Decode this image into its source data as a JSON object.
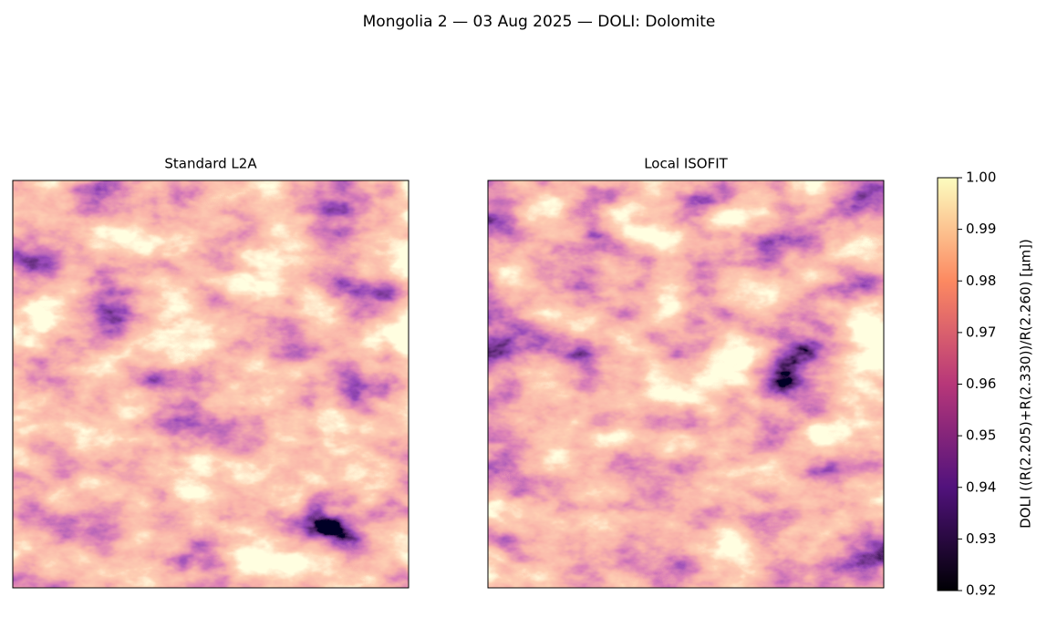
{
  "chart_data": {
    "type": "image",
    "title": "Mongolia 2 — 03 Aug 2025 — DOLI: Dolomite",
    "panels": [
      {
        "title": "Standard L2A"
      },
      {
        "title": "Local ISOFIT"
      }
    ],
    "colorbar": {
      "label": "DOLI  ((R(2.205)+R(2.330))/R(2.260)  [µm])",
      "colormap": "magma",
      "lim": [
        0.92,
        1.0
      ],
      "ticks": [
        0.92,
        0.93,
        0.94,
        0.95,
        0.96,
        0.97,
        0.98,
        0.99,
        {
          "value": 1.0,
          "label": "1.00"
        }
      ]
    }
  }
}
